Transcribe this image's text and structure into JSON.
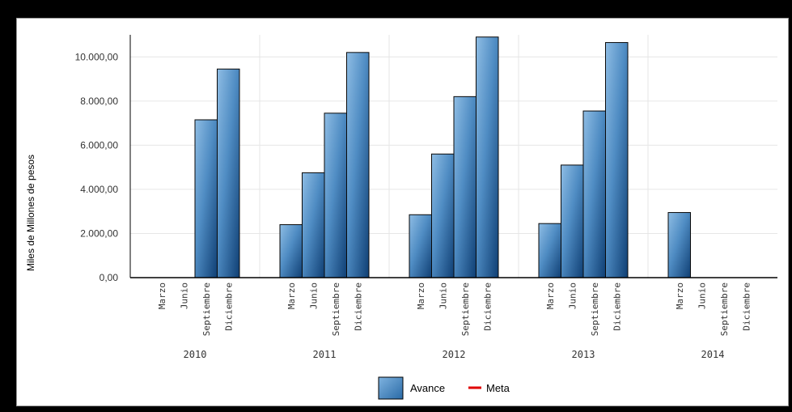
{
  "chart_data": {
    "type": "bar",
    "title": "",
    "ylabel": "Miles de Millones de pesos",
    "xlabel": "",
    "ylim": [
      0,
      11000
    ],
    "yticks": [
      0,
      2000,
      4000,
      6000,
      8000,
      10000
    ],
    "ytick_labels": [
      "0,00",
      "2.000,00",
      "4.000,00",
      "6.000,00",
      "8.000,00",
      "10.000,00"
    ],
    "grid": true,
    "legend_position": "bottom",
    "groups": [
      {
        "label": "2010",
        "categories": [
          "Marzo",
          "Junio",
          "Septiembre",
          "Diciembre"
        ],
        "values": [
          null,
          null,
          7150,
          9450
        ]
      },
      {
        "label": "2011",
        "categories": [
          "Marzo",
          "Junio",
          "Septiembre",
          "Diciembre"
        ],
        "values": [
          2400,
          4750,
          7450,
          10200
        ]
      },
      {
        "label": "2012",
        "categories": [
          "Marzo",
          "Junio",
          "Septiembre",
          "Diciembre"
        ],
        "values": [
          2850,
          5600,
          8200,
          10900
        ]
      },
      {
        "label": "2013",
        "categories": [
          "Marzo",
          "Junio",
          "Septiembre",
          "Diciembre"
        ],
        "values": [
          2450,
          5100,
          7550,
          10650
        ]
      },
      {
        "label": "2014",
        "categories": [
          "Marzo",
          "Junio",
          "Septiembre",
          "Diciembre"
        ],
        "values": [
          2950,
          null,
          null,
          null
        ]
      }
    ],
    "series": [
      {
        "name": "Avance",
        "color": "#2f6da3"
      },
      {
        "name": "Meta",
        "color": "#e00000"
      }
    ]
  }
}
